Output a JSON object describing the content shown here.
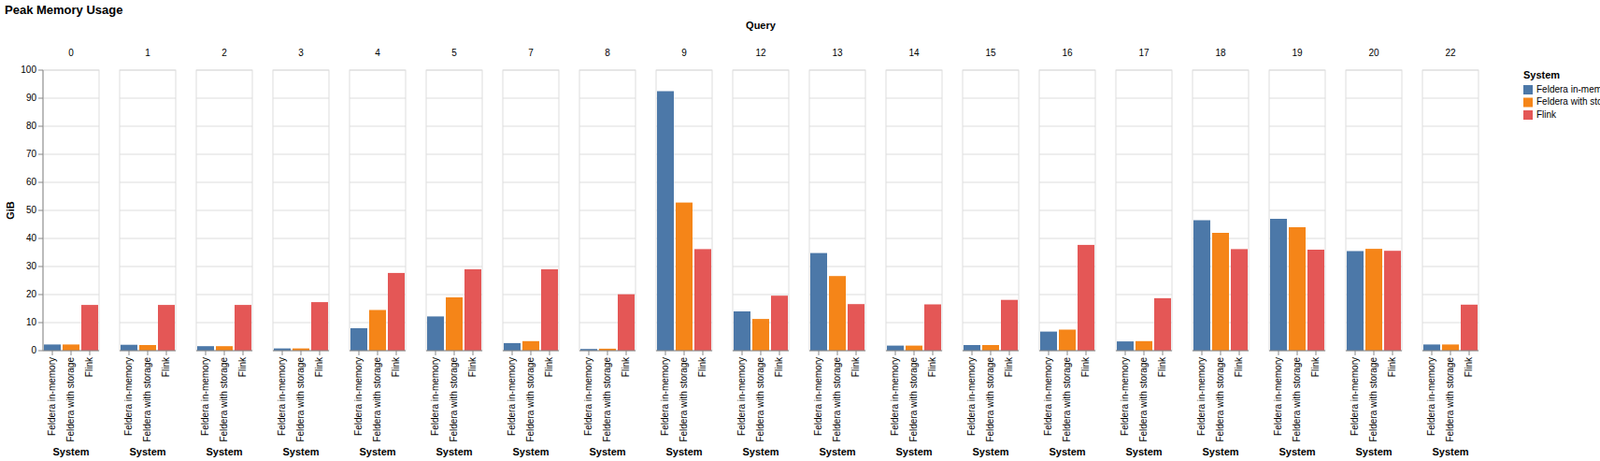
{
  "chart_data": {
    "type": "bar",
    "title": "Peak Memory Usage",
    "facet_title": "Query",
    "xlabel": "System",
    "ylabel": "GiB",
    "legend_title": "System",
    "categories": [
      "0",
      "1",
      "2",
      "3",
      "4",
      "5",
      "7",
      "8",
      "9",
      "12",
      "13",
      "14",
      "15",
      "16",
      "17",
      "18",
      "19",
      "20",
      "22"
    ],
    "series": [
      {
        "name": "Feldera in-memory",
        "color": "#4c78a8",
        "values": [
          2.2,
          2.1,
          1.6,
          0.8,
          8.0,
          12.2,
          2.7,
          0.6,
          92.5,
          14.0,
          34.8,
          1.8,
          2.0,
          6.8,
          3.3,
          46.5,
          47.0,
          35.5,
          2.2
        ]
      },
      {
        "name": "Feldera with storage",
        "color": "#f58518",
        "values": [
          2.2,
          2.0,
          1.6,
          0.8,
          14.5,
          19.0,
          3.4,
          0.7,
          52.8,
          11.3,
          26.6,
          1.8,
          2.0,
          7.5,
          3.4,
          42.0,
          44.0,
          36.3,
          2.2
        ]
      },
      {
        "name": "Flink",
        "color": "#e45756",
        "values": [
          16.3,
          16.3,
          16.3,
          17.3,
          27.7,
          29.0,
          29.0,
          20.1,
          36.2,
          19.6,
          16.6,
          16.5,
          18.1,
          37.7,
          18.7,
          36.2,
          36.0,
          35.6,
          16.4
        ]
      }
    ],
    "ylim": [
      0,
      100
    ],
    "yticks": [
      0,
      10,
      20,
      30,
      40,
      50,
      60,
      70,
      80,
      90,
      100
    ],
    "grid": true,
    "legend": "top-right"
  }
}
